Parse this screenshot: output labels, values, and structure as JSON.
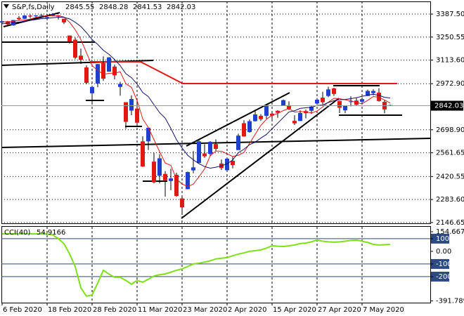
{
  "chart_data": {
    "type": "candlestick",
    "title": "S&P,fs,Daily",
    "info_values": [
      2845.55,
      2848.28,
      2841.53,
      2842.03
    ],
    "categories": [
      "6 Feb 2020",
      null,
      null,
      null,
      null,
      null,
      null,
      null,
      "18 Feb 2020",
      null,
      null,
      null,
      null,
      null,
      null,
      null,
      "28 Feb 2020",
      null,
      null,
      null,
      null,
      null,
      null,
      null,
      "11 Mar 2020",
      null,
      null,
      null,
      null,
      null,
      null,
      null,
      "23 Mar 2020",
      null,
      null,
      null,
      null,
      null,
      null,
      null,
      "2 Apr 2020",
      null,
      null,
      null,
      null,
      null,
      null,
      null,
      "15 Apr 2020",
      null,
      null,
      null,
      null,
      null,
      null,
      null,
      "27 Apr 2020",
      null,
      null,
      null,
      null,
      null,
      null,
      null,
      "7 May 2020",
      null,
      null,
      null,
      null,
      null
    ],
    "open": [
      3337,
      3345,
      3320,
      3365,
      3360,
      3378,
      3375,
      3380,
      3365,
      3375,
      3380,
      3360,
      3260,
      3235,
      3140,
      3070,
      2916,
      2974,
      3096,
      3045,
      3075,
      2954,
      2863,
      2813,
      2825,
      2630,
      2630,
      2509,
      2425,
      2436,
      2394,
      2431,
      2290,
      2345,
      2457,
      2501,
      2558,
      2555,
      2614,
      2498,
      2458,
      2514,
      2578,
      2738,
      2685,
      2750,
      2782,
      2782,
      2795,
      2812,
      2842,
      2845,
      2752,
      2751,
      2810,
      2812,
      2855,
      2890,
      2900,
      2945,
      2870,
      2815,
      2868,
      2873,
      2866,
      2900,
      2917,
      2920,
      2865,
      2845.55
    ],
    "high": [
      3347,
      3347,
      3353,
      3376,
      3382,
      3385,
      3381,
      3386,
      3374,
      3393,
      3381,
      3360,
      3260,
      3247,
      3182,
      3083,
      2959,
      3090,
      3136,
      3131,
      3087,
      2985,
      2863,
      2904,
      2883,
      2660,
      2711,
      2562,
      2553,
      2453,
      2467,
      2443,
      2300,
      2450,
      2572,
      2638,
      2613,
      2631,
      2642,
      2522,
      2533,
      2538,
      2676,
      2756,
      2760,
      2819,
      2792,
      2852,
      2806,
      2815,
      2879,
      2868,
      2785,
      2815,
      2819,
      2842,
      2888,
      2925,
      2955,
      2950,
      2870,
      2844,
      2898,
      2891,
      2892,
      2938,
      2940,
      2946,
      2875,
      2848.28
    ],
    "low": [
      3333,
      3315,
      3318,
      3350,
      3357,
      3364,
      3365,
      3375,
      3350,
      3374,
      3355,
      3328,
      3212,
      3119,
      3091,
      2970,
      2856,
      2952,
      2990,
      3044,
      2999,
      2902,
      2705,
      2786,
      2736,
      2478,
      2579,
      2380,
      2380,
      2301,
      2339,
      2300,
      2192,
      2345,
      2440,
      2501,
      2532,
      2545,
      2573,
      2459,
      2455,
      2469,
      2578,
      2657,
      2682,
      2747,
      2752,
      2765,
      2761,
      2770,
      2840,
      2816,
      2727,
      2751,
      2767,
      2793,
      2852,
      2850,
      2893,
      2901,
      2798,
      2798,
      2838,
      2844,
      2860,
      2900,
      2904,
      2866,
      2797,
      2841.53
    ],
    "close": [
      3345,
      3327,
      3352,
      3357,
      3379,
      3373,
      3380,
      3382,
      3370,
      3386,
      3373,
      3338,
      3225,
      3128,
      3116,
      2978,
      2954,
      3090,
      3003,
      3130,
      3023,
      2972,
      2746,
      2882,
      2741,
      2480,
      2711,
      2386,
      2529,
      2398,
      2409,
      2305,
      2237,
      2447,
      2475,
      2630,
      2541,
      2627,
      2585,
      2471,
      2527,
      2489,
      2664,
      2659,
      2750,
      2790,
      2762,
      2846,
      2783,
      2800,
      2875,
      2823,
      2737,
      2799,
      2798,
      2837,
      2878,
      2863,
      2939,
      2912,
      2830,
      2842,
      2868,
      2848,
      2881,
      2930,
      2930,
      2870,
      2820,
      2842.03
    ],
    "colors": {
      "up": "#1f3fd0",
      "down": "#e01818"
    },
    "last_price": 2842.03,
    "ylim": [
      2142,
      3463
    ],
    "yticks": [
      {
        "value": 3387.5,
        "label": "3387.50"
      },
      3250.55,
      {
        "value": 3113.6,
        "label": "3113.60"
      },
      {
        "value": 2972.9,
        "label": "2972.90"
      },
      {
        "value": 2698.9,
        "label": "2698.90"
      },
      2561.65,
      2420.55,
      {
        "value": 2283.6,
        "label": "2283.60"
      },
      2146.65
    ],
    "grid": true,
    "moving_averages": [
      {
        "color": "#e01818",
        "values": [
          3340,
          3342,
          3345,
          3350,
          3352,
          3358,
          3368,
          3374,
          3377,
          3378,
          3378,
          3370,
          3339,
          3294,
          3236,
          3157,
          3080,
          3053,
          3028,
          3035,
          3036,
          3044,
          2973,
          2951,
          2873,
          2764,
          2712,
          2640,
          2569,
          2501,
          2487,
          2406,
          2376,
          2361,
          2375,
          2419,
          2466,
          2544,
          2572,
          2571,
          2556,
          2540,
          2547,
          2564,
          2618,
          2672,
          2725,
          2761,
          2786,
          2796,
          2813,
          2825,
          2804,
          2807,
          2806,
          2799,
          2810,
          2835,
          2863,
          2886,
          2884,
          2877,
          2872,
          2860,
          2854,
          2874,
          2897,
          2892,
          2876,
          2858
        ]
      },
      {
        "color": "#10106a",
        "values": [
          3330,
          3333,
          3336,
          3340,
          3345,
          3350,
          3355,
          3360,
          3362,
          3366,
          3369,
          3368,
          3359,
          3339,
          3314,
          3277,
          3236,
          3207,
          3172,
          3148,
          3117,
          3081,
          3033,
          3009,
          2971,
          2921,
          2896,
          2848,
          2801,
          2768,
          2707,
          2640,
          2590,
          2547,
          2520,
          2497,
          2480,
          2470,
          2476,
          2484,
          2496,
          2519,
          2562,
          2583,
          2610,
          2625,
          2649,
          2671,
          2705,
          2738,
          2772,
          2805,
          2812,
          2826,
          2830,
          2832,
          2844,
          2846,
          2861,
          2872,
          2877,
          2880,
          2884,
          2890,
          2898,
          2905,
          2910,
          2904,
          2892,
          2888
        ]
      }
    ],
    "indicator": {
      "type": "line",
      "name": "CCI(40)",
      "value": 54.9166,
      "color": "#7fe01a",
      "values": [
        138,
        139,
        138,
        137,
        138,
        139,
        138,
        137,
        136,
        130,
        100,
        60,
        -20,
        -122,
        -288,
        -355,
        -344,
        -250,
        -150,
        -180,
        -205,
        -205,
        -230,
        -260,
        -230,
        -244,
        -220,
        -195,
        -185,
        -178,
        -165,
        -150,
        -139,
        -120,
        -100,
        -94,
        -85,
        -75,
        -60,
        -55,
        -50,
        -35,
        -22,
        -12,
        0,
        5,
        11,
        25,
        44,
        40,
        38,
        44,
        50,
        61,
        65,
        75,
        89,
        80,
        75,
        72,
        75,
        80,
        86,
        89,
        80,
        70,
        55,
        50,
        52,
        54.9166
      ],
      "ylim": [
        -391.789,
        154.667
      ],
      "yticks": [
        154.667,
        100,
        {
          "value": 0,
          "label": "0.00"
        },
        -100,
        -200,
        -391.789
      ],
      "levels": [
        100,
        -100,
        -200
      ],
      "level_color": "#2c4a80"
    }
  }
}
